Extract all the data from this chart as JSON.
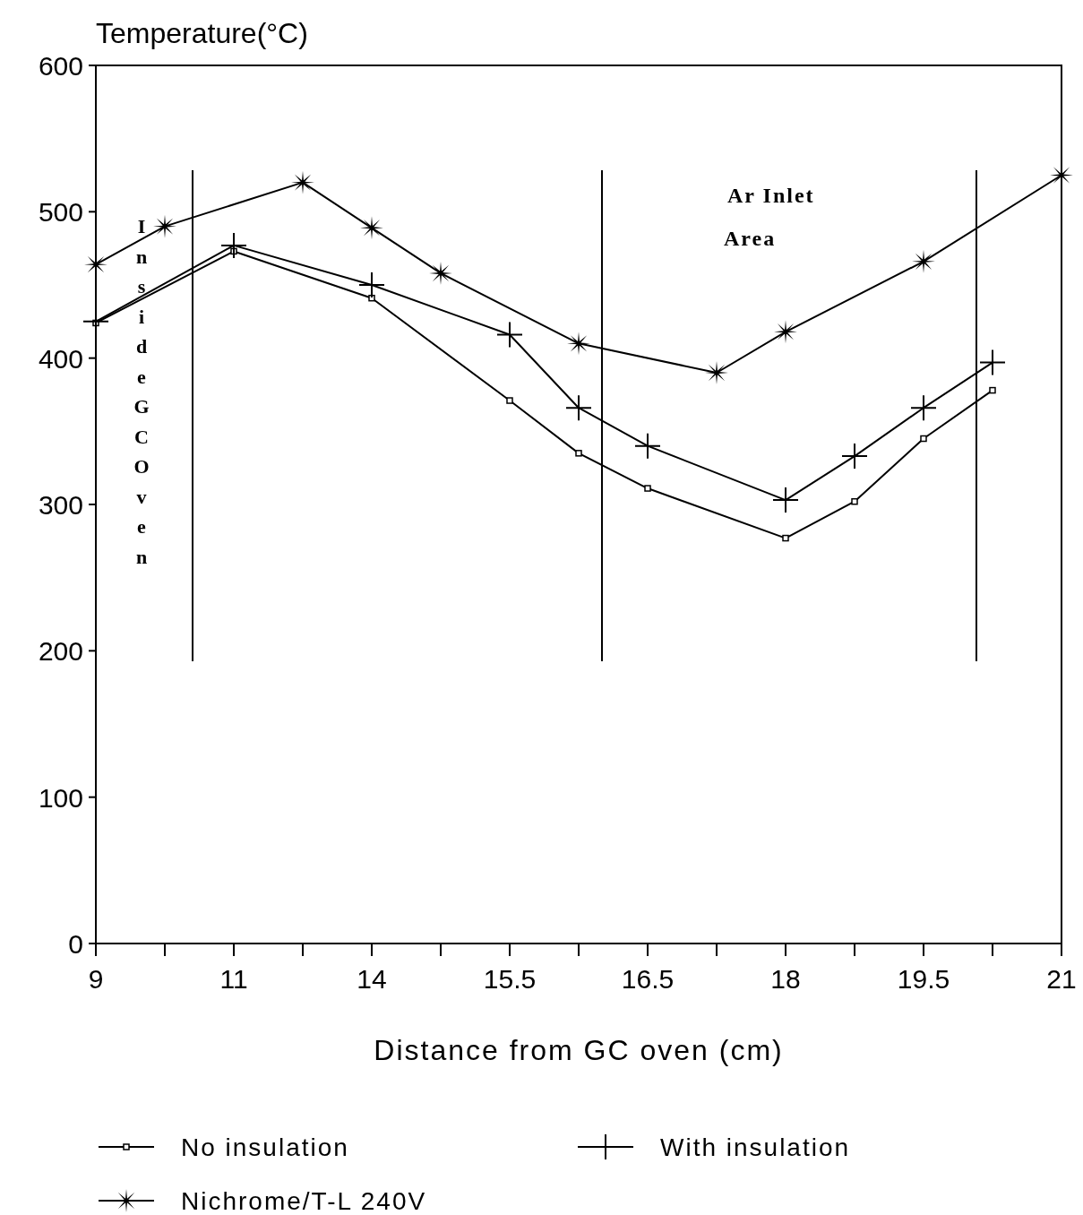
{
  "chart_data": {
    "type": "line",
    "ylabel": "Temperature(°C)",
    "xlabel": "Distance from GC oven (cm)",
    "categories": [
      "9",
      null,
      "11",
      null,
      "14",
      null,
      "15.5",
      null,
      "16.5",
      null,
      "18",
      null,
      "19.5",
      null,
      "21"
    ],
    "series": [
      {
        "name": "No insulation",
        "color": "#000000",
        "marker": "square",
        "values": [
          424,
          null,
          473,
          null,
          441,
          null,
          371,
          335,
          311,
          null,
          277,
          302,
          345,
          378,
          null
        ]
      },
      {
        "name": "With insulation",
        "color": "#000000",
        "marker": "cross",
        "values": [
          425,
          null,
          477,
          null,
          450,
          null,
          416,
          366,
          340,
          null,
          303,
          333,
          366,
          397,
          null
        ]
      },
      {
        "name": "Nichrome/T-L 240V",
        "color": "#000000",
        "marker": "star",
        "values": [
          464,
          490,
          null,
          520,
          489,
          458,
          null,
          410,
          null,
          390,
          418,
          null,
          466,
          null,
          525
        ]
      }
    ],
    "ylim": [
      0,
      600
    ],
    "yticks": [
      0,
      100,
      200,
      300,
      400,
      500,
      600
    ],
    "annotations": [
      "Inside GC Oven",
      "Ar Inlet Area"
    ],
    "legend": "bottom",
    "line_style": "solid"
  }
}
